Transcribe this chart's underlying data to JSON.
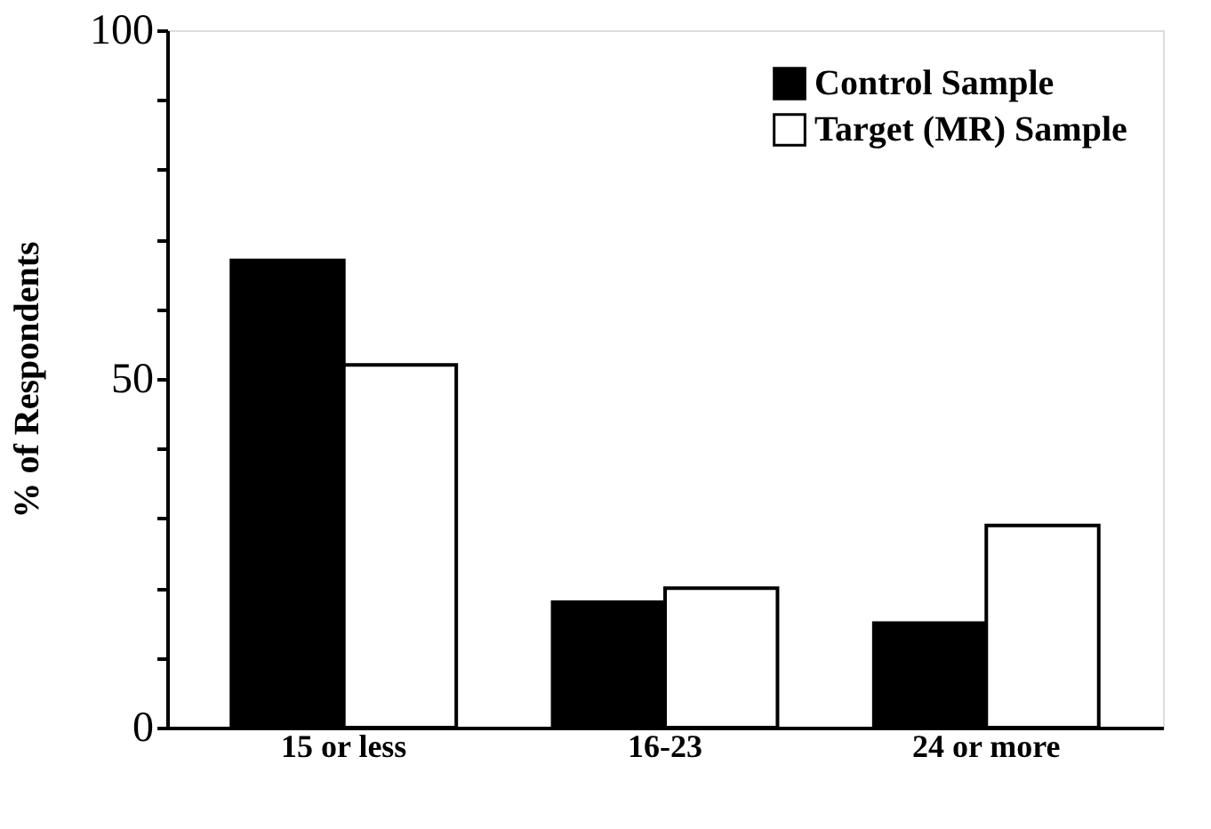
{
  "chart_data": {
    "type": "bar",
    "ylabel": "% of Respondents",
    "categories": [
      "15 or less",
      "16-23",
      "24 or more"
    ],
    "series": [
      {
        "name": "Control Sample",
        "color": "#000000",
        "values": [
          67,
          18,
          15
        ]
      },
      {
        "name": "Target (MR) Sample",
        "color": "#ffffff",
        "values": [
          52,
          20,
          29
        ]
      }
    ],
    "ylim": [
      0,
      100
    ],
    "yticks": [
      0,
      {
        "value": 10,
        "label": null
      },
      {
        "value": 20,
        "label": null
      },
      {
        "value": 30,
        "label": null
      },
      {
        "value": 40,
        "label": null
      },
      50,
      {
        "value": 60,
        "label": null
      },
      {
        "value": 70,
        "label": null
      },
      {
        "value": 80,
        "label": null
      },
      {
        "value": 90,
        "label": null
      },
      100
    ],
    "grid": false,
    "legend": "top right"
  }
}
